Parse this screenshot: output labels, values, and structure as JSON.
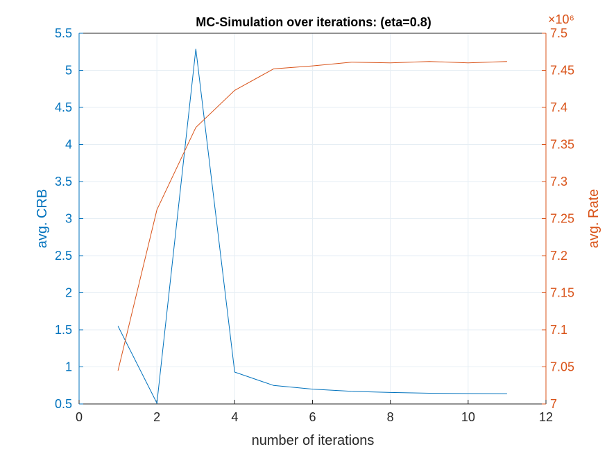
{
  "title": "MC-Simulation over iterations: (eta=0.8)",
  "colors": {
    "left": "#0072BD",
    "right": "#D95319",
    "grid": "#E6EEF4",
    "axis": "#262626"
  },
  "chart_data": {
    "type": "line",
    "title": "MC-Simulation over iterations: (eta=0.8)",
    "xlabel": "number of iterations",
    "xlim": [
      0,
      12
    ],
    "xticks": [
      0,
      2,
      4,
      6,
      8,
      10,
      12
    ],
    "grid": true,
    "left_axis": {
      "label": "avg. CRB",
      "ylim": [
        0.5,
        5.5
      ],
      "ticks": [
        0.5,
        1,
        1.5,
        2,
        2.5,
        3,
        3.5,
        4,
        4.5,
        5,
        5.5
      ]
    },
    "right_axis": {
      "label": "avg. Rate",
      "ylim": [
        7.0,
        7.5
      ],
      "ticks": [
        7,
        7.05,
        7.1,
        7.15,
        7.2,
        7.25,
        7.3,
        7.35,
        7.4,
        7.45,
        7.5
      ],
      "exponent_label": "×10⁶"
    },
    "series": [
      {
        "axis": "left",
        "x": [
          1,
          2,
          3,
          4,
          5,
          6,
          7,
          8,
          9,
          10,
          11
        ],
        "values": [
          1.55,
          0.51,
          5.29,
          0.93,
          0.75,
          0.7,
          0.67,
          0.655,
          0.645,
          0.64,
          0.637
        ]
      },
      {
        "axis": "right",
        "x": [
          1,
          2,
          3,
          4,
          5,
          6,
          7,
          8,
          9,
          10,
          11
        ],
        "values": [
          7.045,
          7.262,
          7.373,
          7.423,
          7.452,
          7.456,
          7.461,
          7.46,
          7.462,
          7.46,
          7.462
        ]
      }
    ]
  }
}
